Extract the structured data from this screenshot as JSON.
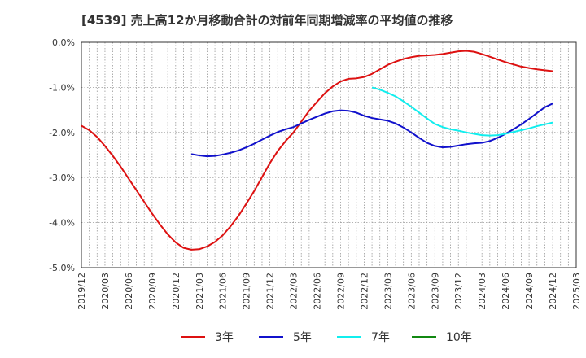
{
  "chart_data": {
    "type": "line",
    "title": "[4539]  売上高12か月移動合計の対前年同期増減率の平均値の推移",
    "xlabel": "",
    "ylabel": "",
    "ylim": [
      -5.0,
      0.0
    ],
    "yticks": [
      "0.0%",
      "-1.0%",
      "-2.0%",
      "-3.0%",
      "-4.0%",
      "-5.0%"
    ],
    "ytick_values": [
      0.0,
      -1.0,
      -2.0,
      -3.0,
      -4.0,
      -5.0
    ],
    "x_range": [
      "2019-12",
      "2025-03"
    ],
    "xticks": [
      "2019/12",
      "2020/03",
      "2020/06",
      "2020/09",
      "2020/12",
      "2021/03",
      "2021/06",
      "2021/09",
      "2021/12",
      "2022/03",
      "2022/06",
      "2022/09",
      "2022/12",
      "2023/03",
      "2023/06",
      "2023/09",
      "2023/12",
      "2024/03",
      "2024/06",
      "2024/09",
      "2024/12",
      "2025/03"
    ],
    "grid": true,
    "legend_position": "bottom",
    "series": [
      {
        "name": "3年",
        "color": "#dd1111",
        "points": [
          [
            "2019-12",
            -1.85
          ],
          [
            "2020-01",
            -1.95
          ],
          [
            "2020-02",
            -2.1
          ],
          [
            "2020-03",
            -2.3
          ],
          [
            "2020-04",
            -2.52
          ],
          [
            "2020-05",
            -2.76
          ],
          [
            "2020-06",
            -3.02
          ],
          [
            "2020-07",
            -3.28
          ],
          [
            "2020-08",
            -3.54
          ],
          [
            "2020-09",
            -3.8
          ],
          [
            "2020-10",
            -4.04
          ],
          [
            "2020-11",
            -4.26
          ],
          [
            "2020-12",
            -4.44
          ],
          [
            "2021-01",
            -4.56
          ],
          [
            "2021-02",
            -4.6
          ],
          [
            "2021-03",
            -4.59
          ],
          [
            "2021-04",
            -4.53
          ],
          [
            "2021-05",
            -4.43
          ],
          [
            "2021-06",
            -4.28
          ],
          [
            "2021-07",
            -4.08
          ],
          [
            "2021-08",
            -3.85
          ],
          [
            "2021-09",
            -3.58
          ],
          [
            "2021-10",
            -3.3
          ],
          [
            "2021-11",
            -2.99
          ],
          [
            "2021-12",
            -2.68
          ],
          [
            "2022-01",
            -2.41
          ],
          [
            "2022-02",
            -2.19
          ],
          [
            "2022-03",
            -2.0
          ],
          [
            "2022-04",
            -1.76
          ],
          [
            "2022-05",
            -1.52
          ],
          [
            "2022-06",
            -1.32
          ],
          [
            "2022-07",
            -1.13
          ],
          [
            "2022-08",
            -0.98
          ],
          [
            "2022-09",
            -0.87
          ],
          [
            "2022-10",
            -0.81
          ],
          [
            "2022-11",
            -0.8
          ],
          [
            "2022-12",
            -0.77
          ],
          [
            "2023-01",
            -0.7
          ],
          [
            "2023-02",
            -0.6
          ],
          [
            "2023-03",
            -0.5
          ],
          [
            "2023-04",
            -0.43
          ],
          [
            "2023-05",
            -0.37
          ],
          [
            "2023-06",
            -0.33
          ],
          [
            "2023-07",
            -0.3
          ],
          [
            "2023-08",
            -0.29
          ],
          [
            "2023-09",
            -0.28
          ],
          [
            "2023-10",
            -0.26
          ],
          [
            "2023-11",
            -0.23
          ],
          [
            "2023-12",
            -0.2
          ],
          [
            "2024-01",
            -0.19
          ],
          [
            "2024-02",
            -0.21
          ],
          [
            "2024-03",
            -0.26
          ],
          [
            "2024-04",
            -0.32
          ],
          [
            "2024-05",
            -0.38
          ],
          [
            "2024-06",
            -0.44
          ],
          [
            "2024-07",
            -0.49
          ],
          [
            "2024-08",
            -0.54
          ],
          [
            "2024-09",
            -0.57
          ],
          [
            "2024-10",
            -0.6
          ],
          [
            "2024-11",
            -0.62
          ],
          [
            "2024-12",
            -0.64
          ]
        ]
      },
      {
        "name": "5年",
        "color": "#1111cc",
        "points": [
          [
            "2021-02",
            -2.48
          ],
          [
            "2021-03",
            -2.51
          ],
          [
            "2021-04",
            -2.53
          ],
          [
            "2021-05",
            -2.52
          ],
          [
            "2021-06",
            -2.49
          ],
          [
            "2021-07",
            -2.45
          ],
          [
            "2021-08",
            -2.4
          ],
          [
            "2021-09",
            -2.33
          ],
          [
            "2021-10",
            -2.25
          ],
          [
            "2021-11",
            -2.16
          ],
          [
            "2021-12",
            -2.07
          ],
          [
            "2022-01",
            -1.99
          ],
          [
            "2022-02",
            -1.93
          ],
          [
            "2022-03",
            -1.88
          ],
          [
            "2022-04",
            -1.8
          ],
          [
            "2022-05",
            -1.72
          ],
          [
            "2022-06",
            -1.65
          ],
          [
            "2022-07",
            -1.58
          ],
          [
            "2022-08",
            -1.53
          ],
          [
            "2022-09",
            -1.51
          ],
          [
            "2022-10",
            -1.52
          ],
          [
            "2022-11",
            -1.56
          ],
          [
            "2022-12",
            -1.63
          ],
          [
            "2023-01",
            -1.68
          ],
          [
            "2023-02",
            -1.71
          ],
          [
            "2023-03",
            -1.74
          ],
          [
            "2023-04",
            -1.8
          ],
          [
            "2023-05",
            -1.89
          ],
          [
            "2023-06",
            -2.0
          ],
          [
            "2023-07",
            -2.12
          ],
          [
            "2023-08",
            -2.23
          ],
          [
            "2023-09",
            -2.3
          ],
          [
            "2023-10",
            -2.33
          ],
          [
            "2023-11",
            -2.32
          ],
          [
            "2023-12",
            -2.29
          ],
          [
            "2024-01",
            -2.26
          ],
          [
            "2024-02",
            -2.24
          ],
          [
            "2024-03",
            -2.23
          ],
          [
            "2024-04",
            -2.19
          ],
          [
            "2024-05",
            -2.12
          ],
          [
            "2024-06",
            -2.03
          ],
          [
            "2024-07",
            -1.93
          ],
          [
            "2024-08",
            -1.82
          ],
          [
            "2024-09",
            -1.7
          ],
          [
            "2024-10",
            -1.57
          ],
          [
            "2024-11",
            -1.44
          ],
          [
            "2024-12",
            -1.36
          ]
        ]
      },
      {
        "name": "7年",
        "color": "#11eeee",
        "points": [
          [
            "2023-01",
            -1.0
          ],
          [
            "2023-02",
            -1.05
          ],
          [
            "2023-03",
            -1.12
          ],
          [
            "2023-04",
            -1.2
          ],
          [
            "2023-05",
            -1.31
          ],
          [
            "2023-06",
            -1.43
          ],
          [
            "2023-07",
            -1.56
          ],
          [
            "2023-08",
            -1.69
          ],
          [
            "2023-09",
            -1.81
          ],
          [
            "2023-10",
            -1.88
          ],
          [
            "2023-11",
            -1.93
          ],
          [
            "2023-12",
            -1.96
          ],
          [
            "2024-01",
            -2.0
          ],
          [
            "2024-02",
            -2.03
          ],
          [
            "2024-03",
            -2.06
          ],
          [
            "2024-04",
            -2.07
          ],
          [
            "2024-05",
            -2.06
          ],
          [
            "2024-06",
            -2.03
          ],
          [
            "2024-07",
            -1.99
          ],
          [
            "2024-08",
            -1.95
          ],
          [
            "2024-09",
            -1.91
          ],
          [
            "2024-10",
            -1.86
          ],
          [
            "2024-11",
            -1.82
          ],
          [
            "2024-12",
            -1.78
          ]
        ]
      },
      {
        "name": "10年",
        "color": "#118811",
        "points": []
      }
    ]
  }
}
